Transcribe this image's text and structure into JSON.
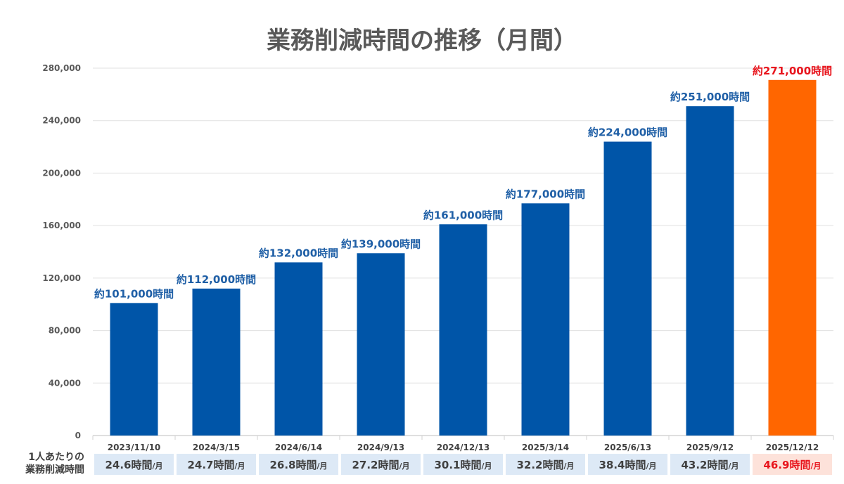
{
  "chart_data": {
    "type": "bar",
    "title": "業務削減時間の推移（月間）",
    "categories": [
      "2023/11/10",
      "2024/3/15",
      "2024/6/14",
      "2024/9/13",
      "2024/12/13",
      "2025/3/14",
      "2025/6/13",
      "2025/9/12",
      "2025/12/12"
    ],
    "values": [
      101000,
      112000,
      132000,
      139000,
      161000,
      177000,
      224000,
      251000,
      271000
    ],
    "data_labels": [
      "約101,000時間",
      "約112,000時間",
      "約132,000時間",
      "約139,000時間",
      "約161,000時間",
      "約177,000時間",
      "約224,000時間",
      "約251,000時間",
      "約271,000時間"
    ],
    "ylim": [
      0,
      280000
    ],
    "yticks": [
      "0",
      "40,000",
      "80,000",
      "120,000",
      "160,000",
      "200,000",
      "240,000",
      "280,000"
    ],
    "grid": true,
    "colors": {
      "bar": "#0055a8",
      "highlight_bar": "#ff6600",
      "label": "#1f5fa6",
      "highlight_label": "#e8141c",
      "cell": "#dde9f6",
      "highlight_cell": "#fde2da"
    },
    "per_person": {
      "label_line1": "1人あたりの",
      "label_line2": "業務削減時間",
      "values": [
        "24.6",
        "24.7",
        "26.8",
        "27.2",
        "30.1",
        "32.2",
        "38.4",
        "43.2",
        "46.9"
      ],
      "unit_hours": "時間",
      "unit_month": "/月"
    }
  }
}
